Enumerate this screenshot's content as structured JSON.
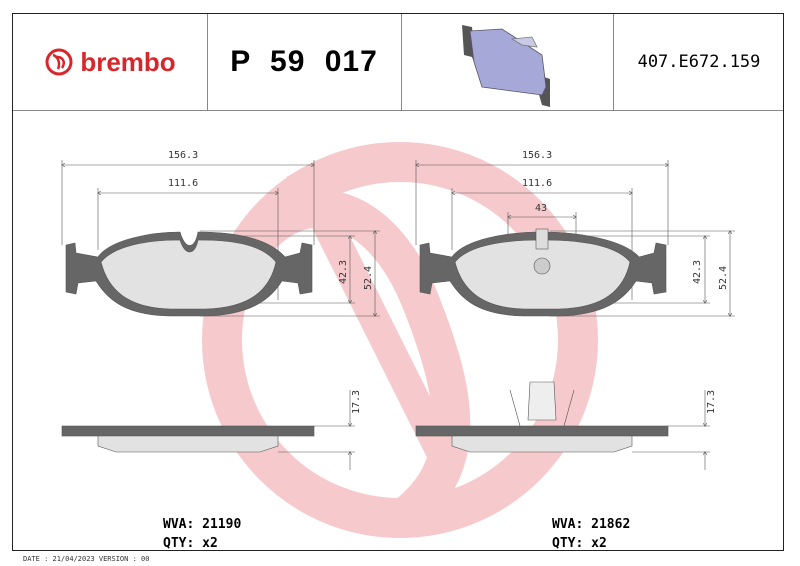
{
  "header": {
    "brand": "brembo",
    "part_number": "P 59 017",
    "reference": "407.E672.159"
  },
  "drawing_left": {
    "dimensions": [
      "156.3",
      "111.6",
      "42.3",
      "52.4",
      "17.3"
    ],
    "wva_label": "WVA: 21190",
    "qty_label": "QTY: x2"
  },
  "drawing_right": {
    "dimensions": [
      "156.3",
      "111.6",
      "43",
      "42.3",
      "52.4",
      "17.3"
    ],
    "wva_label": "WVA: 21862",
    "qty_label": "QTY: x2"
  },
  "footer": "DATE : 21/04/2023 VERSION : 00",
  "colors": {
    "brand": "#d9262b",
    "watermark": "#f3c9cb",
    "pad": "#666666",
    "pad_face": "#e2e2e2",
    "thumb_face": "#a6a8d8"
  }
}
